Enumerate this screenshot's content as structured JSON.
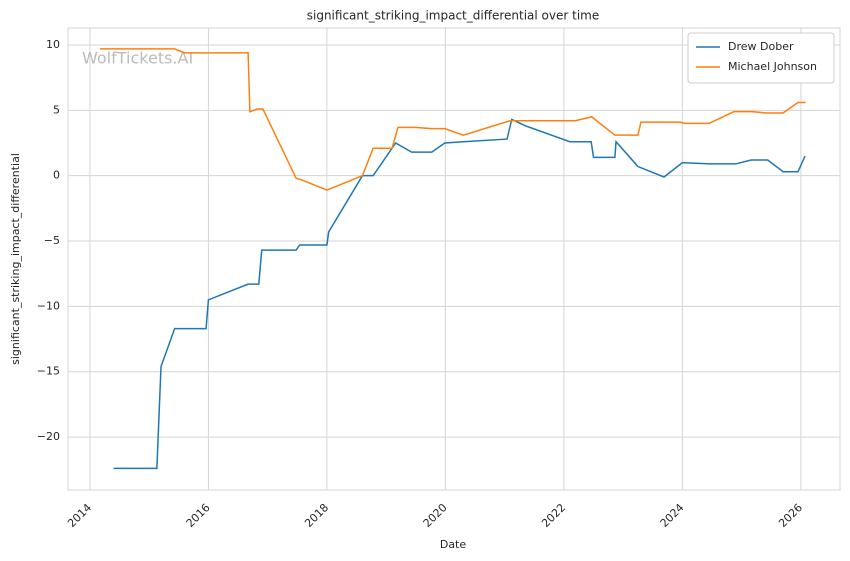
{
  "chart_data": {
    "type": "line",
    "title": "significant_striking_impact_differential over time",
    "xlabel": "Date",
    "ylabel": "significant_striking_impact_differential",
    "watermark": "WolfTickets.AI",
    "xlim": [
      2013.63,
      2026.66
    ],
    "xticks": [
      2014,
      2016,
      2018,
      2020,
      2022,
      2024,
      2026
    ],
    "ylim": [
      -24.05,
      11.3
    ],
    "yticks": [
      {
        "value": -20,
        "label": "−20"
      },
      {
        "value": -15,
        "label": "−15"
      },
      {
        "value": -10,
        "label": "−10"
      },
      {
        "value": -5,
        "label": "−5"
      },
      0,
      5,
      10
    ],
    "grid": true,
    "legend": "upper right",
    "series": [
      {
        "name": "Drew Dober",
        "color": "#1f77b4",
        "x": [
          2014.4,
          2015.13,
          2015.2,
          2015.43,
          2015.96,
          2016.0,
          2016.67,
          2016.85,
          2016.9,
          2017.48,
          2017.54,
          2018.0,
          2018.03,
          2018.6,
          2018.78,
          2019.16,
          2019.43,
          2019.77,
          2019.99,
          2020.3,
          2021.04,
          2021.12,
          2021.36,
          2022.1,
          2022.46,
          2022.5,
          2022.86,
          2022.88,
          2023.25,
          2023.69,
          2024.0,
          2024.46,
          2024.9,
          2025.16,
          2025.44,
          2025.7,
          2025.95,
          2026.07
        ],
        "values": [
          -22.4,
          -22.4,
          -14.6,
          -11.7,
          -11.7,
          -9.5,
          -8.3,
          -8.3,
          -5.7,
          -5.7,
          -5.3,
          -5.3,
          -4.3,
          0.0,
          0.0,
          2.5,
          1.8,
          1.8,
          2.5,
          2.6,
          2.8,
          4.3,
          3.8,
          2.6,
          2.6,
          1.4,
          1.4,
          2.6,
          0.7,
          -0.1,
          1.0,
          0.9,
          0.9,
          1.2,
          1.2,
          0.3,
          0.3,
          1.5
        ]
      },
      {
        "name": "Michael Johnson",
        "color": "#ff7f0e",
        "x": [
          2014.17,
          2015.43,
          2015.6,
          2016.67,
          2016.7,
          2016.82,
          2016.92,
          2017.48,
          2017.56,
          2018.0,
          2018.6,
          2018.78,
          2019.1,
          2019.2,
          2019.49,
          2019.77,
          2019.99,
          2020.3,
          2021.09,
          2022.19,
          2022.47,
          2022.86,
          2023.25,
          2023.3,
          2023.96,
          2024.04,
          2024.45,
          2024.87,
          2025.17,
          2025.41,
          2025.7,
          2025.95,
          2026.08
        ],
        "values": [
          9.7,
          9.7,
          9.4,
          9.4,
          4.9,
          5.1,
          5.1,
          -0.2,
          -0.3,
          -1.1,
          0.0,
          2.1,
          2.1,
          3.7,
          3.7,
          3.6,
          3.6,
          3.1,
          4.2,
          4.2,
          4.5,
          3.1,
          3.1,
          4.1,
          4.1,
          4.0,
          4.0,
          4.9,
          4.9,
          4.8,
          4.8,
          5.6,
          5.6
        ]
      }
    ]
  }
}
